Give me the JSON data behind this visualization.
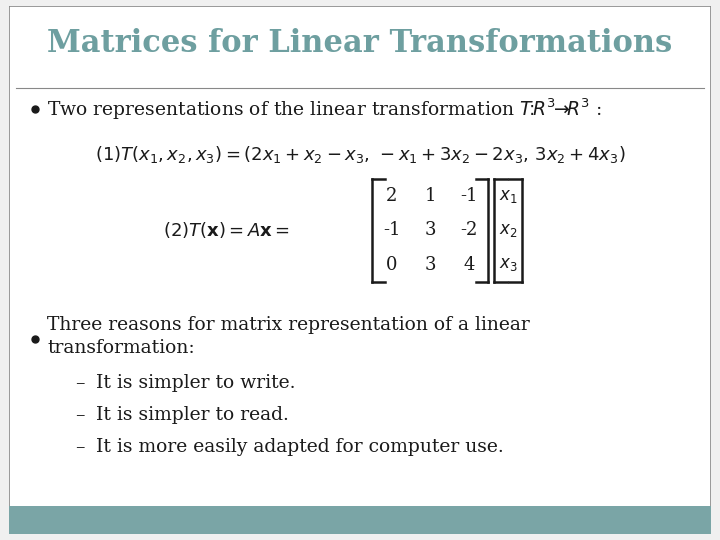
{
  "title": "Matrices for Linear Transformations",
  "title_color": "#6e9fa0",
  "title_fontsize": 22,
  "bg_color": "#f0f0f0",
  "slide_bg": "#ffffff",
  "footer_color": "#7aa5a6",
  "border_color": "#888888",
  "bullet1": "Two representations of the linear transformation $T\\!:\\!R^3\\!\\rightarrow\\!R^3$ :",
  "eq1": "$(1)T(x_1, x_2, x_3) = (2x_1 + x_2 - x_3,\\,-x_1 + 3x_2 - 2x_3,\\,3x_2 + 4x_3)$",
  "eq2_label": "$(2)T(\\mathbf{x}) = A\\mathbf{x} =$",
  "matrix": [
    [
      2,
      1,
      -1
    ],
    [
      -1,
      3,
      -2
    ],
    [
      0,
      3,
      4
    ]
  ],
  "xvec": [
    "x_1",
    "x_2",
    "x_3"
  ],
  "bullet2_line1": "Three reasons for matrix representation of a linear",
  "bullet2_line2": "transformation:",
  "sub1": "It is simpler to write.",
  "sub2": "It is simpler to read.",
  "sub3": "It is more easily adapted for computer use.",
  "text_color": "#1a1a1a",
  "body_fontsize": 13.5,
  "eq_fontsize": 13.0
}
